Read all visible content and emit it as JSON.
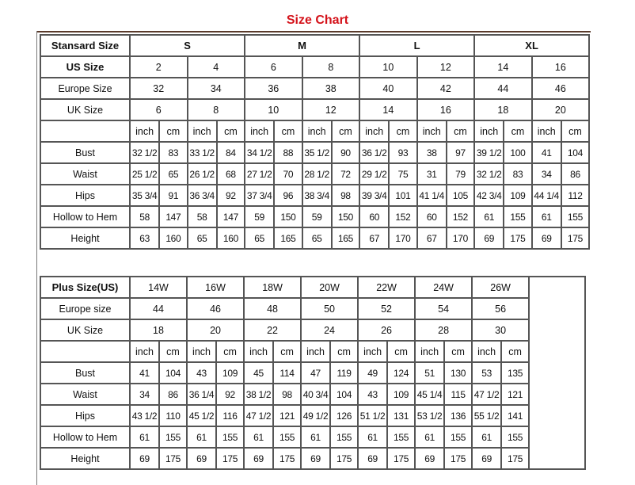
{
  "title": "Size Chart",
  "standard": {
    "header_label": "Stansard Size",
    "groups": [
      "S",
      "M",
      "L",
      "XL"
    ],
    "us_label": "US Size",
    "us": [
      "2",
      "4",
      "6",
      "8",
      "10",
      "12",
      "14",
      "16"
    ],
    "europe_label": "Europe Size",
    "europe": [
      "32",
      "34",
      "36",
      "38",
      "40",
      "42",
      "44",
      "46"
    ],
    "uk_label": "UK Size",
    "uk": [
      "6",
      "8",
      "10",
      "12",
      "14",
      "16",
      "18",
      "20"
    ],
    "unit_inch": "inch",
    "unit_cm": "cm",
    "measurements": [
      {
        "label": "Bust",
        "values": [
          "32 1/2",
          "83",
          "33 1/2",
          "84",
          "34 1/2",
          "88",
          "35 1/2",
          "90",
          "36 1/2",
          "93",
          "38",
          "97",
          "39 1/2",
          "100",
          "41",
          "104"
        ]
      },
      {
        "label": "Waist",
        "values": [
          "25 1/2",
          "65",
          "26 1/2",
          "68",
          "27 1/2",
          "70",
          "28 1/2",
          "72",
          "29 1/2",
          "75",
          "31",
          "79",
          "32 1/2",
          "83",
          "34",
          "86"
        ]
      },
      {
        "label": "Hips",
        "values": [
          "35 3/4",
          "91",
          "36 3/4",
          "92",
          "37 3/4",
          "96",
          "38 3/4",
          "98",
          "39 3/4",
          "101",
          "41 1/4",
          "105",
          "42 3/4",
          "109",
          "44 1/4",
          "112"
        ]
      },
      {
        "label": "Hollow to Hem",
        "values": [
          "58",
          "147",
          "58",
          "147",
          "59",
          "150",
          "59",
          "150",
          "60",
          "152",
          "60",
          "152",
          "61",
          "155",
          "61",
          "155"
        ]
      },
      {
        "label": "Height",
        "values": [
          "63",
          "160",
          "65",
          "160",
          "65",
          "165",
          "65",
          "165",
          "67",
          "170",
          "67",
          "170",
          "69",
          "175",
          "69",
          "175"
        ]
      }
    ]
  },
  "plus": {
    "header_label": "Plus Size(US)",
    "sizes": [
      "14W",
      "16W",
      "18W",
      "20W",
      "22W",
      "24W",
      "26W"
    ],
    "europe_label": "Europe size",
    "europe": [
      "44",
      "46",
      "48",
      "50",
      "52",
      "54",
      "56"
    ],
    "uk_label": "UK Size",
    "uk": [
      "18",
      "20",
      "22",
      "24",
      "26",
      "28",
      "30"
    ],
    "unit_inch": "inch",
    "unit_cm": "cm",
    "measurements": [
      {
        "label": "Bust",
        "values": [
          "41",
          "104",
          "43",
          "109",
          "45",
          "114",
          "47",
          "119",
          "49",
          "124",
          "51",
          "130",
          "53",
          "135"
        ]
      },
      {
        "label": "Waist",
        "values": [
          "34",
          "86",
          "36 1/4",
          "92",
          "38 1/2",
          "98",
          "40 3/4",
          "104",
          "43",
          "109",
          "45 1/4",
          "115",
          "47 1/2",
          "121"
        ]
      },
      {
        "label": "Hips",
        "values": [
          "43 1/2",
          "110",
          "45 1/2",
          "116",
          "47 1/2",
          "121",
          "49 1/2",
          "126",
          "51 1/2",
          "131",
          "53 1/2",
          "136",
          "55 1/2",
          "141"
        ]
      },
      {
        "label": "Hollow to Hem",
        "values": [
          "61",
          "155",
          "61",
          "155",
          "61",
          "155",
          "61",
          "155",
          "61",
          "155",
          "61",
          "155",
          "61",
          "155"
        ]
      },
      {
        "label": "Height",
        "values": [
          "69",
          "175",
          "69",
          "175",
          "69",
          "175",
          "69",
          "175",
          "69",
          "175",
          "69",
          "175",
          "69",
          "175"
        ]
      }
    ]
  }
}
